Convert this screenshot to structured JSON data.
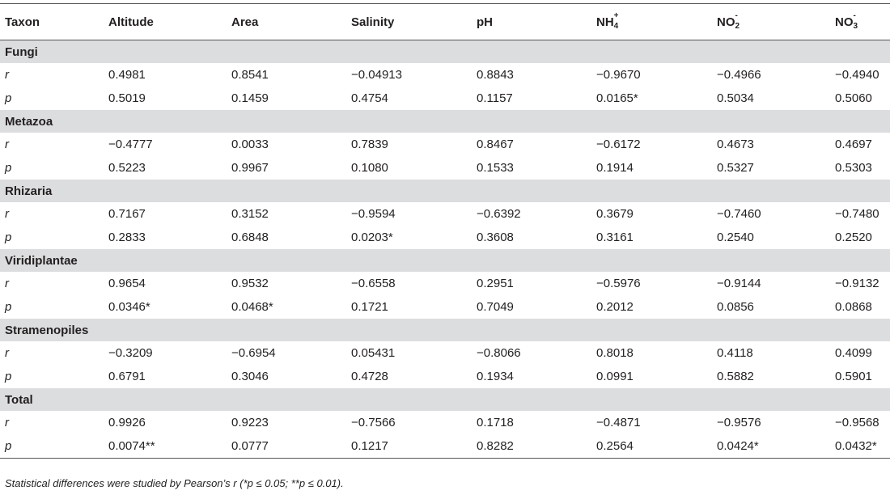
{
  "headers": {
    "taxon": "Taxon",
    "altitude": "Altitude",
    "area": "Area",
    "salinity": "Salinity",
    "ph": "pH",
    "nh4_base": "NH",
    "nh4_sup": "+",
    "nh4_sub": "4",
    "no2_base": "NO",
    "no2_sup": "-",
    "no2_sub": "2",
    "no3_base": "NO",
    "no3_sup": "-",
    "no3_sub": "3"
  },
  "groups": [
    {
      "name": "Fungi",
      "r": [
        "r",
        "0.4981",
        "0.8541",
        "−0.04913",
        "0.8843",
        "−0.9670",
        "−0.4966",
        "−0.4940"
      ],
      "p": [
        "p",
        "0.5019",
        "0.1459",
        "0.4754",
        "0.1157",
        "0.0165*",
        "0.5034",
        "0.5060"
      ]
    },
    {
      "name": "Metazoa",
      "r": [
        "r",
        "−0.4777",
        "0.0033",
        "0.7839",
        "0.8467",
        "−0.6172",
        "0.4673",
        "0.4697"
      ],
      "p": [
        "p",
        "0.5223",
        "0.9967",
        "0.1080",
        "0.1533",
        "0.1914",
        "0.5327",
        "0.5303"
      ]
    },
    {
      "name": "Rhizaria",
      "r": [
        "r",
        "0.7167",
        "0.3152",
        "−0.9594",
        "−0.6392",
        "0.3679",
        "−0.7460",
        "−0.7480"
      ],
      "p": [
        "p",
        "0.2833",
        "0.6848",
        "0.0203*",
        "0.3608",
        "0.3161",
        "0.2540",
        "0.2520"
      ]
    },
    {
      "name": "Viridiplantae",
      "r": [
        "r",
        "0.9654",
        "0.9532",
        "−0.6558",
        "0.2951",
        "−0.5976",
        "−0.9144",
        "−0.9132"
      ],
      "p": [
        "p",
        "0.0346*",
        "0.0468*",
        "0.1721",
        "0.7049",
        "0.2012",
        "0.0856",
        "0.0868"
      ]
    },
    {
      "name": "Stramenopiles",
      "r": [
        "r",
        "−0.3209",
        "−0.6954",
        "0.05431",
        "−0.8066",
        "0.8018",
        "0.4118",
        "0.4099"
      ],
      "p": [
        "p",
        "0.6791",
        "0.3046",
        "0.4728",
        "0.1934",
        "0.0991",
        "0.5882",
        "0.5901"
      ]
    },
    {
      "name": "Total",
      "r": [
        "r",
        "0.9926",
        "0.9223",
        "−0.7566",
        "0.1718",
        "−0.4871",
        "−0.9576",
        "−0.9568"
      ],
      "p": [
        "p",
        "0.0074**",
        "0.0777",
        "0.1217",
        "0.8282",
        "0.2564",
        "0.0424*",
        "0.0432*"
      ]
    }
  ],
  "footnote": "Statistical differences were studied by Pearson’s r (*p ≤ 0.05; **p ≤ 0.01)."
}
